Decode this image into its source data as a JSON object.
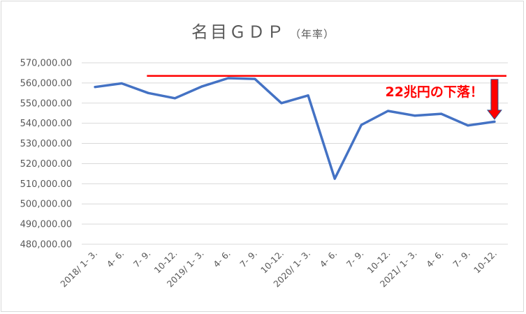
{
  "chart_data": {
    "type": "line",
    "title": "名目ＧＤＰ",
    "subtitle": "（年率）",
    "categories": [
      "2018/ 1- 3.",
      "4- 6.",
      "7- 9.",
      "10-12.",
      "2019/ 1- 3.",
      "4- 6.",
      "7- 9.",
      "10-12.",
      "2020/ 1- 3.",
      "4- 6.",
      "7- 9.",
      "10-12.",
      "2021/ 1- 3.",
      "4- 6.",
      "7- 9.",
      "10-12."
    ],
    "series": [
      {
        "values": [
          558000,
          559800,
          555000,
          552400,
          558200,
          562400,
          562000,
          550000,
          553800,
          512500,
          539200,
          546100,
          543800,
          544700,
          538900,
          540800
        ],
        "color": "#4472c4"
      }
    ],
    "ylim": [
      480000,
      570000
    ],
    "yticks": [
      480000,
      490000,
      500000,
      510000,
      520000,
      530000,
      540000,
      550000,
      560000,
      570000
    ],
    "ytick_labels": [
      "480,000.00",
      "490,000.00",
      "500,000.00",
      "510,000.00",
      "520,000.00",
      "530,000.00",
      "540,000.00",
      "550,000.00",
      "560,000.00",
      "570,000.00"
    ],
    "grid": true,
    "annotation": {
      "text": "22兆円の下落！",
      "color": "#ff0000",
      "reference_line_value": 563500,
      "reference_line_from_category": "7- 9.",
      "arrow_category": "10-12.",
      "arrow_value_to": 542000
    }
  }
}
